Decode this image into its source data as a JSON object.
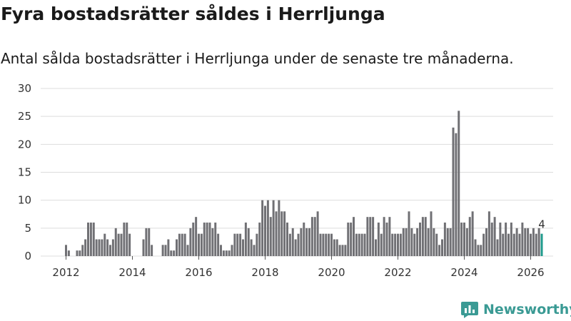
{
  "title": "Fyra bostadsrätter såldes i Herrljunga",
  "subtitle": "Antal sålda bostadsrätter i Herrljunga under de senaste tre månaderna.",
  "brand": {
    "name": "Newsworthy",
    "color": "#3a9a94"
  },
  "colors": {
    "bar": "#707074",
    "highlight": "#1f9a8c",
    "grid": "#dddddd"
  },
  "chart_data": {
    "type": "bar",
    "title": "Fyra bostadsrätter såldes i Herrljunga",
    "xlabel": "",
    "ylabel": "",
    "ylim": [
      0,
      30
    ],
    "yticks": [
      "0",
      "5",
      "10",
      "15",
      "20",
      "25",
      "30"
    ],
    "xticks": [
      "2012",
      "2014",
      "2016",
      "2018",
      "2020",
      "2022",
      "2024",
      "2026"
    ],
    "start": "2012-01",
    "end": "2026-01",
    "highlight_label": "4",
    "values": [
      2,
      1,
      0,
      0,
      1,
      1,
      2,
      3,
      6,
      6,
      6,
      3,
      3,
      3,
      4,
      3,
      2,
      3,
      5,
      4,
      4,
      6,
      6,
      4,
      0,
      0,
      0,
      0,
      3,
      5,
      5,
      2,
      0,
      0,
      0,
      2,
      2,
      3,
      1,
      1,
      3,
      4,
      4,
      4,
      2,
      5,
      6,
      7,
      4,
      4,
      6,
      6,
      6,
      5,
      6,
      4,
      2,
      1,
      1,
      1,
      2,
      4,
      4,
      4,
      3,
      6,
      5,
      3,
      2,
      4,
      6,
      10,
      9,
      10,
      7,
      10,
      8,
      10,
      8,
      8,
      6,
      4,
      5,
      3,
      4,
      5,
      6,
      5,
      5,
      7,
      7,
      8,
      4,
      4,
      4,
      4,
      4,
      3,
      3,
      2,
      2,
      2,
      6,
      6,
      7,
      4,
      4,
      4,
      4,
      7,
      7,
      7,
      3,
      6,
      4,
      7,
      6,
      7,
      4,
      4,
      4,
      4,
      5,
      5,
      8,
      5,
      4,
      5,
      6,
      7,
      7,
      5,
      8,
      5,
      4,
      2,
      3,
      6,
      5,
      5,
      23,
      22,
      26,
      6,
      6,
      5,
      7,
      8,
      3,
      2,
      2,
      4,
      5,
      8,
      6,
      7,
      3,
      6,
      4,
      6,
      4,
      6,
      4,
      5,
      4,
      6,
      5,
      5,
      4,
      5,
      4,
      5,
      4
    ]
  }
}
